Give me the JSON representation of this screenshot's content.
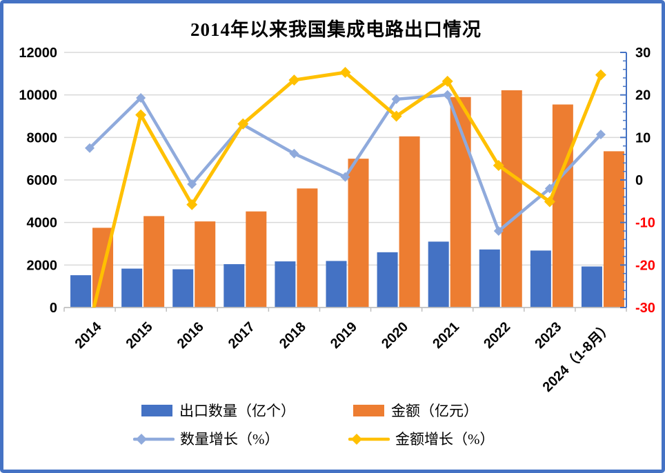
{
  "title": "2014年以来我国集成电路出口情况",
  "frame": {
    "border_color": "#4472C4",
    "background_color": "#FFFFFF"
  },
  "chart_data": {
    "type": "combo-bar-line",
    "categories": [
      "2014",
      "2015",
      "2016",
      "2017",
      "2018",
      "2019",
      "2020",
      "2021",
      "2022",
      "2023",
      "2024（1-8月）"
    ],
    "series": [
      {
        "name": "出口数量（亿个）",
        "type": "bar",
        "axis": "left",
        "color": "#4472C4",
        "values": [
          1520,
          1830,
          1800,
          2040,
          2170,
          2190,
          2600,
          3100,
          2730,
          2680,
          1930
        ]
      },
      {
        "name": "金额（亿元）",
        "type": "bar",
        "axis": "left",
        "color": "#ED7D31",
        "values": [
          3750,
          4300,
          4050,
          4520,
          5600,
          7000,
          8050,
          9900,
          10220,
          9550,
          7350
        ]
      },
      {
        "name": "数量增长（%）",
        "type": "line",
        "axis": "right",
        "color": "#8FAADC",
        "marker": "diamond",
        "values": [
          7.5,
          19.3,
          -1.0,
          13.0,
          6.2,
          0.7,
          19.0,
          20.0,
          -12.0,
          -2.0,
          10.7
        ]
      },
      {
        "name": "金额增长（%）",
        "type": "line",
        "axis": "right",
        "color": "#FFC000",
        "marker": "diamond",
        "values": [
          -34,
          15.3,
          -5.8,
          13.2,
          23.5,
          25.3,
          15.0,
          23.2,
          3.4,
          -5.1,
          24.7
        ]
      }
    ],
    "left_axis": {
      "min": 0,
      "max": 12000,
      "step": 2000,
      "tick_labels": [
        "0",
        "2000",
        "4000",
        "6000",
        "8000",
        "10000",
        "12000"
      ],
      "label_color": "#000000"
    },
    "right_axis": {
      "min": -30,
      "max": 30,
      "step": 10,
      "minor_step": 2,
      "tick_labels": [
        "30",
        "20",
        "10",
        "0",
        "-10",
        "-20",
        "-30"
      ],
      "label_color": "#000000",
      "negative_label_color": "#FF0000",
      "line_color": "#4472C4"
    },
    "x_axis": {
      "line_color": "#BFBFBF",
      "label_color": "#000000",
      "label_rotation_deg": -45
    },
    "gridline_color": "#D9D9D9",
    "legend_position": "bottom"
  }
}
